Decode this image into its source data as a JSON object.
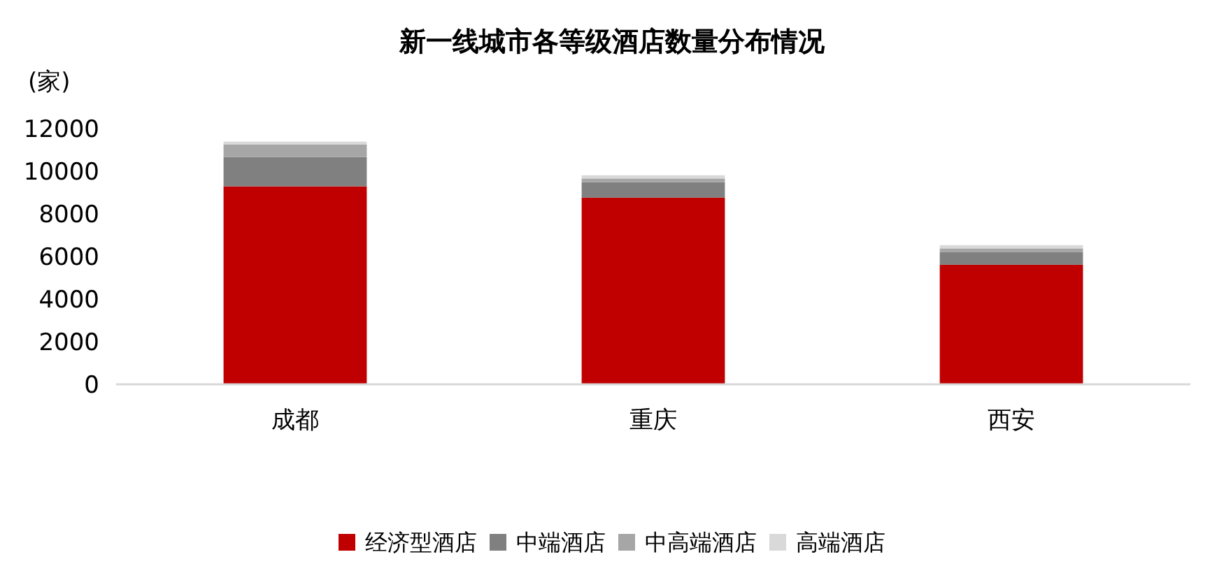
{
  "chart_data": {
    "type": "bar",
    "title": "新一线城市各等级酒店数量分布情况",
    "ylabel": "(家)",
    "categories": [
      "成都",
      "重庆",
      "西安"
    ],
    "series": [
      {
        "name": "经济型酒店",
        "color": "#c00000",
        "values": [
          9290,
          8760,
          5610
        ]
      },
      {
        "name": "中端酒店",
        "color": "#808080",
        "values": [
          1380,
          730,
          590
        ]
      },
      {
        "name": "中高端酒店",
        "color": "#a6a6a6",
        "values": [
          590,
          170,
          180
        ]
      },
      {
        "name": "高端酒店",
        "color": "#d9d9d9",
        "values": [
          130,
          150,
          150
        ]
      }
    ],
    "stacked": true,
    "ylim": [
      0,
      12000
    ],
    "yticks": [
      0,
      2000,
      4000,
      6000,
      8000,
      10000,
      12000
    ],
    "grid": false,
    "legend": "bottom"
  }
}
